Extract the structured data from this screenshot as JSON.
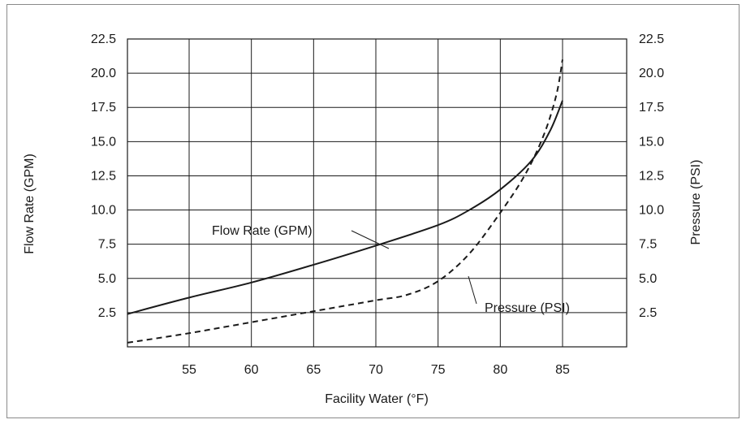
{
  "chart_data": {
    "type": "line",
    "title": "",
    "xlabel": "Facility Water (°F)",
    "ylabel_left": "Flow Rate (GPM)",
    "ylabel_right": "Pressure (PSI)",
    "xlim": [
      50,
      90
    ],
    "ylim": [
      0,
      22.5
    ],
    "x_ticks": [
      "55",
      "60",
      "65",
      "70",
      "75",
      "80",
      "85"
    ],
    "y_ticks_left": [
      "2.5",
      "5.0",
      "7.5",
      "10.0",
      "12.5",
      "15.0",
      "17.5",
      "20.0",
      "22.5"
    ],
    "y_ticks_right": [
      "2.5",
      "5.0",
      "7.5",
      "10.0",
      "12.5",
      "15.0",
      "17.5",
      "20.0",
      "22.5"
    ],
    "grid": true,
    "series": [
      {
        "name": "Flow Rate (GPM)",
        "style": "solid",
        "axis": "left",
        "x": [
          50,
          55,
          60,
          65,
          70,
          75,
          77.5,
          80,
          82.5,
          84,
          85
        ],
        "y": [
          2.4,
          3.6,
          4.7,
          6.0,
          7.4,
          8.9,
          10.0,
          11.5,
          13.6,
          15.8,
          18.0
        ]
      },
      {
        "name": "Pressure (PSI)",
        "style": "dashed",
        "axis": "right",
        "x": [
          50,
          55,
          60,
          65,
          70,
          72.5,
          75,
          77.5,
          80,
          82,
          83.5,
          84.5,
          85
        ],
        "y": [
          0.3,
          1.0,
          1.8,
          2.6,
          3.4,
          3.8,
          4.8,
          6.8,
          9.8,
          12.6,
          15.5,
          18.4,
          21.0
        ]
      }
    ],
    "annotations": [
      {
        "text": "Flow Rate (GPM)",
        "points_to": "Flow Rate (GPM)",
        "at_x": 70.5
      },
      {
        "text": "Pressure (PSI)",
        "points_to": "Pressure (PSI)",
        "at_x": 75.5
      }
    ]
  }
}
